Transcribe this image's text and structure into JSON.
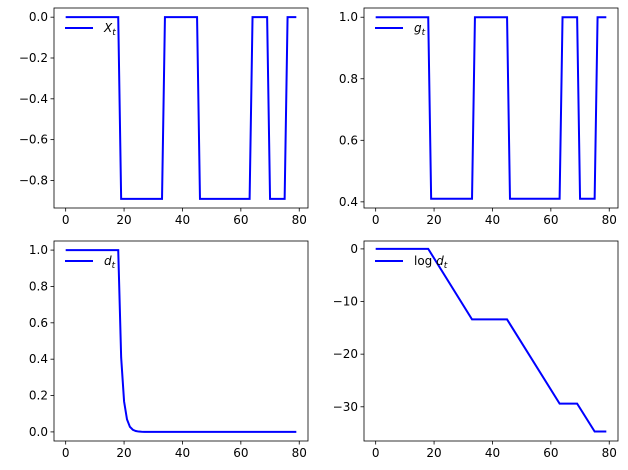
{
  "figure": {
    "line_color": "#0000ff",
    "axis_color": "#000000",
    "background": "#ffffff"
  },
  "chart_data": [
    {
      "type": "line",
      "legend": {
        "label": "X",
        "subscript": "t",
        "prefix": "",
        "placement": "upper-left"
      },
      "xlim": [
        -4,
        83
      ],
      "ylim": [
        -0.935,
        0.045
      ],
      "xticks": [
        0,
        20,
        40,
        60,
        80
      ],
      "xtick_labels": [
        "0",
        "20",
        "40",
        "60",
        "80"
      ],
      "yticks": [
        0.0,
        -0.2,
        -0.4,
        -0.6,
        -0.8
      ],
      "ytick_labels": [
        "0.0",
        "−0.2",
        "−0.4",
        "−0.6",
        "−0.8"
      ],
      "series": [
        {
          "color": "#0000ff",
          "x": [
            0,
            18,
            19,
            33,
            34,
            45,
            46,
            63,
            64,
            69,
            70,
            75,
            76,
            79
          ],
          "y": [
            0,
            0,
            -0.89,
            -0.89,
            0,
            0,
            -0.89,
            -0.89,
            0,
            0,
            -0.89,
            -0.89,
            0,
            0
          ]
        }
      ]
    },
    {
      "type": "line",
      "legend": {
        "label": "g",
        "subscript": "t",
        "prefix": "",
        "placement": "upper-left"
      },
      "xlim": [
        -4,
        83
      ],
      "ylim": [
        0.38,
        1.03
      ],
      "xticks": [
        0,
        20,
        40,
        60,
        80
      ],
      "xtick_labels": [
        "0",
        "20",
        "40",
        "60",
        "80"
      ],
      "yticks": [
        0.4,
        0.6,
        0.8,
        1.0
      ],
      "ytick_labels": [
        "0.4",
        "0.6",
        "0.8",
        "1.0"
      ],
      "series": [
        {
          "color": "#0000ff",
          "x": [
            0,
            18,
            19,
            33,
            34,
            45,
            46,
            63,
            64,
            69,
            70,
            75,
            76,
            79
          ],
          "y": [
            1,
            1,
            0.41,
            0.41,
            1,
            1,
            0.41,
            0.41,
            1,
            1,
            0.41,
            0.41,
            1,
            1
          ]
        }
      ]
    },
    {
      "type": "line",
      "legend": {
        "label": "d",
        "subscript": "t",
        "prefix": "",
        "placement": "upper-left"
      },
      "xlim": [
        -4,
        83
      ],
      "ylim": [
        -0.05,
        1.05
      ],
      "xticks": [
        0,
        20,
        40,
        60,
        80
      ],
      "xtick_labels": [
        "0",
        "20",
        "40",
        "60",
        "80"
      ],
      "yticks": [
        0.0,
        0.2,
        0.4,
        0.6,
        0.8,
        1.0
      ],
      "ytick_labels": [
        "0.0",
        "0.2",
        "0.4",
        "0.6",
        "0.8",
        "1.0"
      ],
      "series": [
        {
          "color": "#0000ff",
          "x": [
            0,
            18,
            19,
            20,
            21,
            22,
            23,
            24,
            25,
            26,
            27,
            28,
            30,
            79
          ],
          "y": [
            1,
            1,
            0.41,
            0.168,
            0.069,
            0.028,
            0.012,
            0.005,
            0.002,
            0.001,
            0.0004,
            0.0002,
            0,
            0
          ]
        }
      ]
    },
    {
      "type": "line",
      "legend": {
        "label": "d",
        "subscript": "t",
        "prefix": "log ",
        "placement": "upper-left"
      },
      "xlim": [
        -4,
        83
      ],
      "ylim": [
        -36.5,
        1.5
      ],
      "xticks": [
        0,
        20,
        40,
        60,
        80
      ],
      "xtick_labels": [
        "0",
        "20",
        "40",
        "60",
        "80"
      ],
      "yticks": [
        0,
        -10,
        -20,
        -30
      ],
      "ytick_labels": [
        "0",
        "−10",
        "−20",
        "−30"
      ],
      "series": [
        {
          "color": "#0000ff",
          "x": [
            0,
            18,
            33,
            45,
            63,
            69,
            75,
            79
          ],
          "y": [
            0,
            0,
            -13.4,
            -13.4,
            -29.4,
            -29.4,
            -34.7,
            -34.7
          ]
        }
      ]
    }
  ]
}
